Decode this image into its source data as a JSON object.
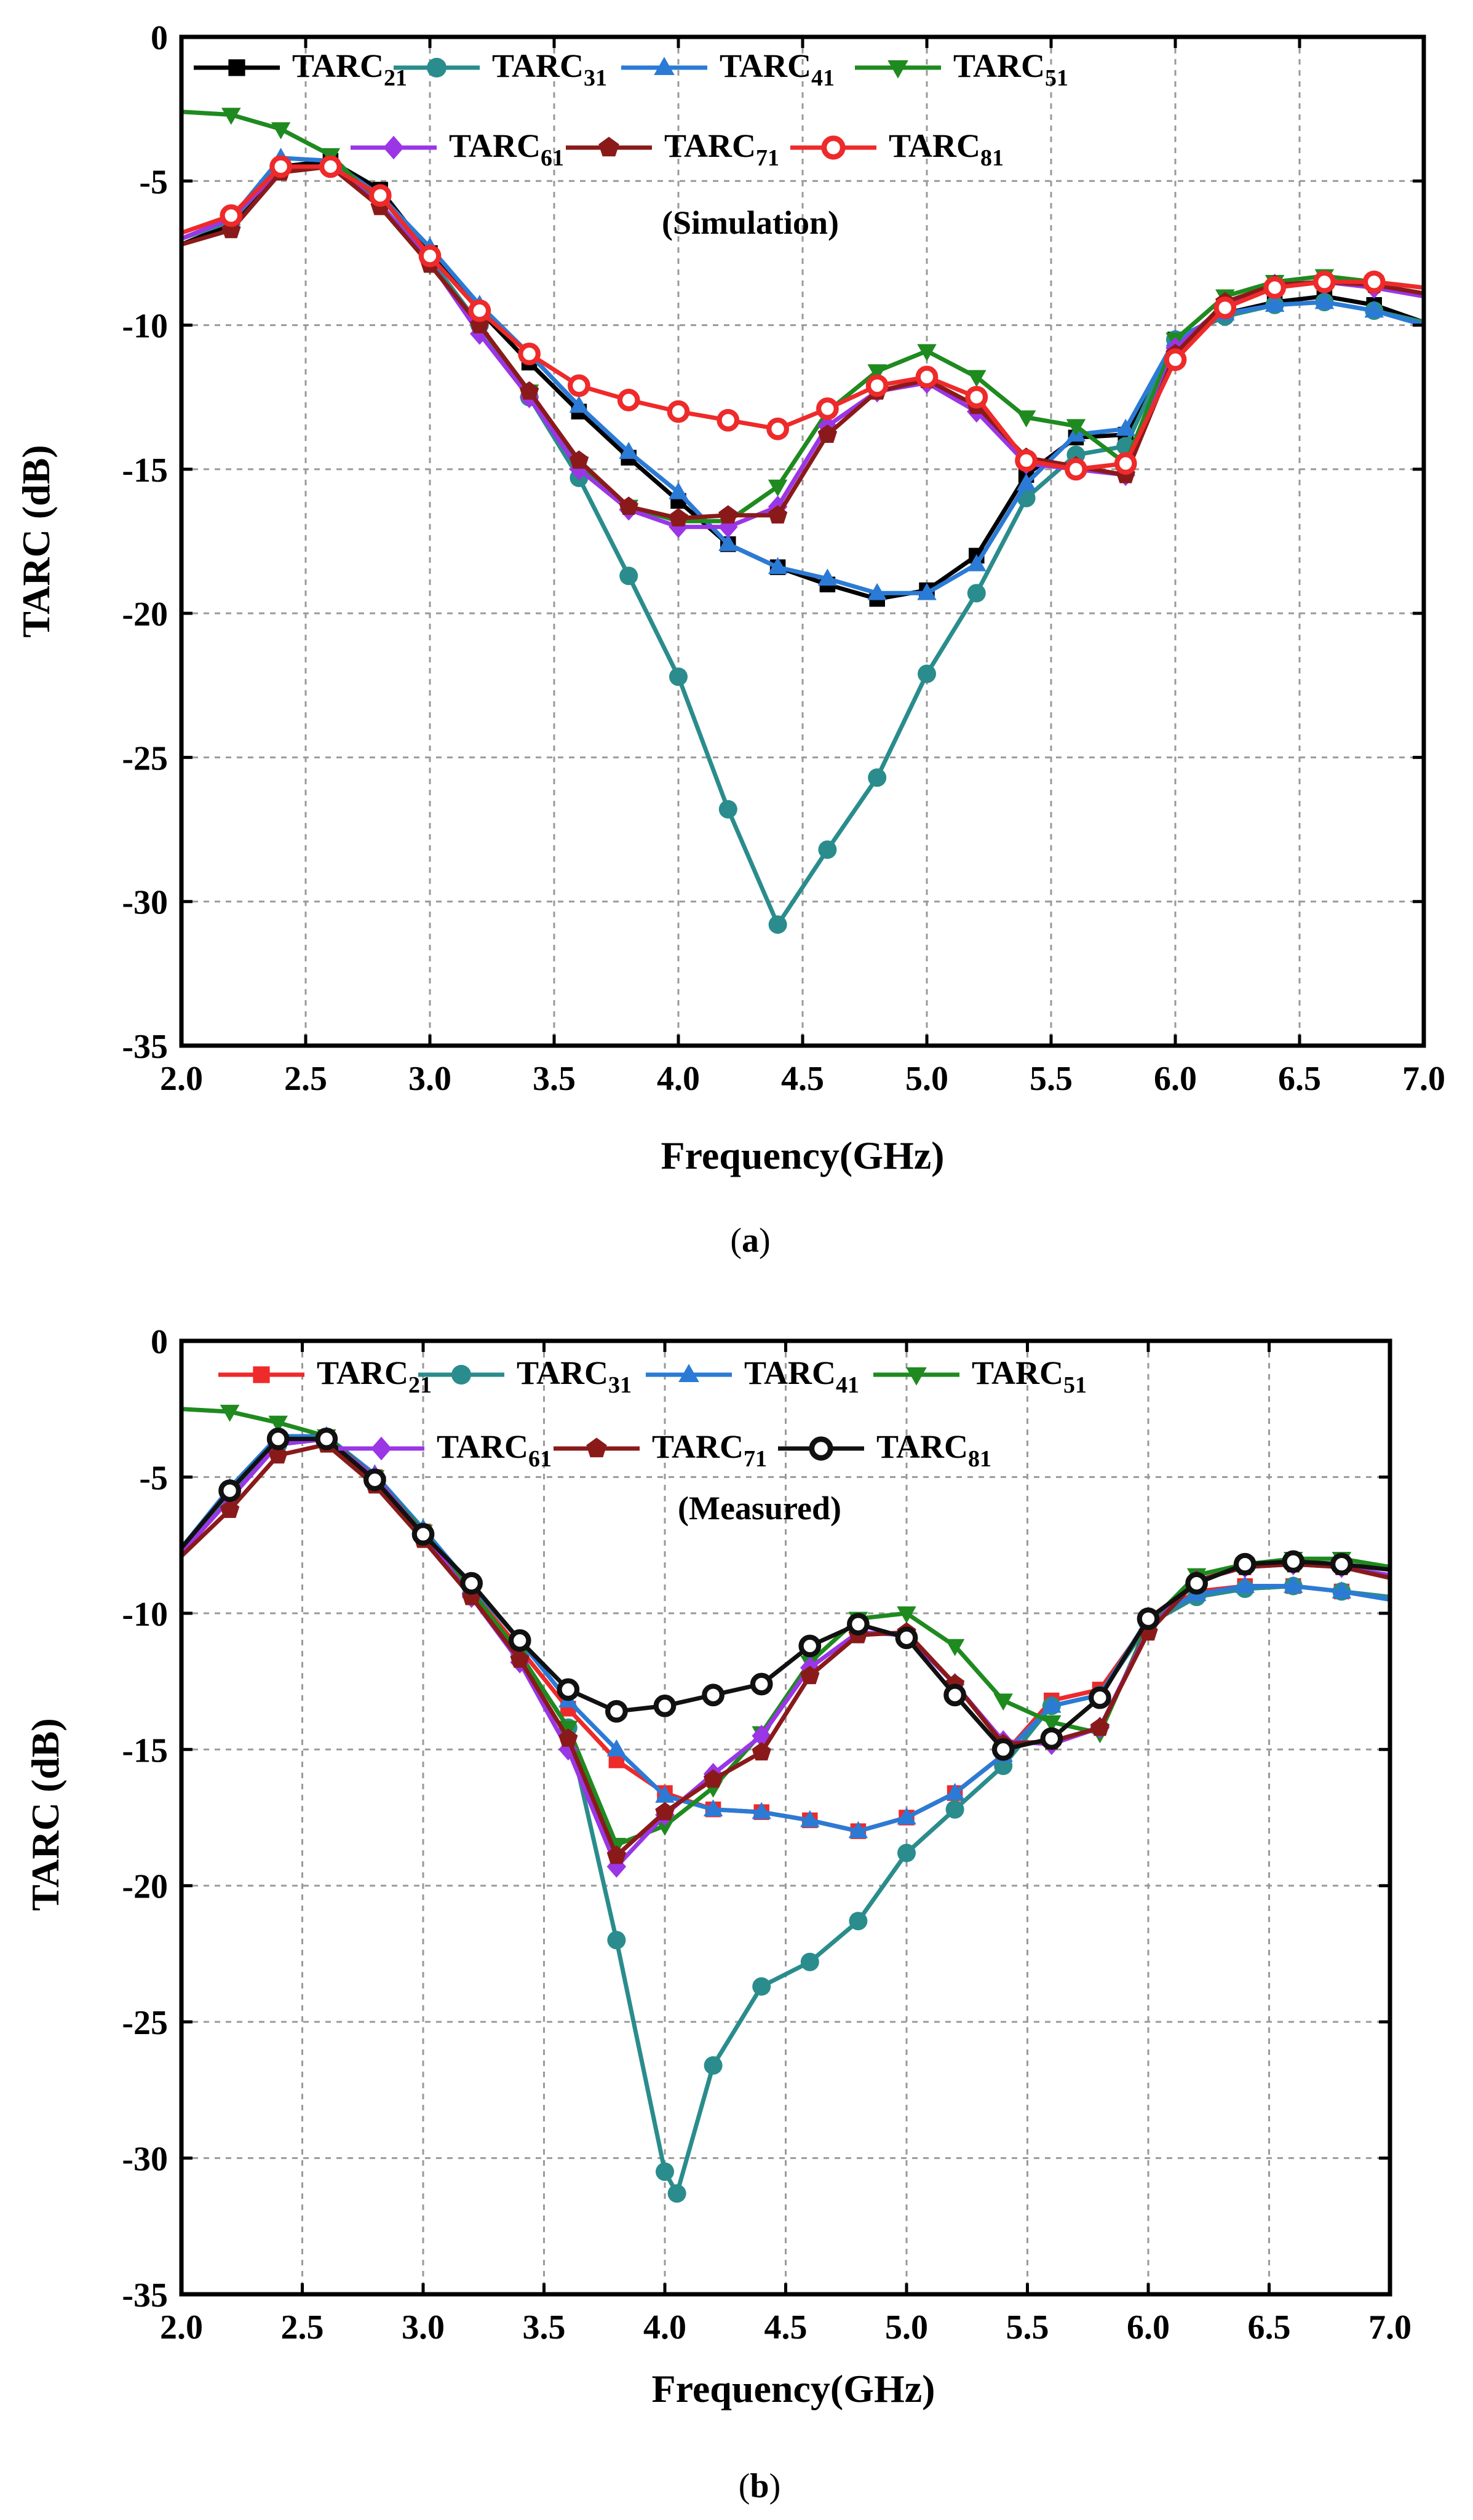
{
  "panels": [
    {
      "caption": "(a)",
      "caption_letter": "a"
    },
    {
      "caption": "(b)",
      "caption_letter": "b"
    }
  ],
  "chart_data": [
    {
      "type": "line",
      "title": "",
      "annotation": "(Simulation)",
      "xlabel": "Frequency(GHz)",
      "ylabel": "TARC (dB)",
      "xlim": [
        2.0,
        7.0
      ],
      "ylim": [
        -35,
        0
      ],
      "xticks": [
        "2.0",
        "2.5",
        "3.0",
        "3.5",
        "4.0",
        "4.5",
        "5.0",
        "5.5",
        "6.0",
        "6.5",
        "7.0"
      ],
      "yticks": [
        "0",
        "-5",
        "-10",
        "-15",
        "-20",
        "-25",
        "-30",
        "-35"
      ],
      "grid": true,
      "legend_position": "top",
      "series": [
        {
          "name": "TARC",
          "subscript": "21",
          "color": "#000000",
          "marker": "square",
          "x": [
            2.0,
            2.2,
            2.4,
            2.6,
            2.8,
            3.0,
            3.2,
            3.4,
            3.6,
            3.8,
            4.0,
            4.2,
            4.4,
            4.6,
            4.8,
            5.0,
            5.2,
            5.4,
            5.6,
            5.8,
            6.0,
            6.2,
            6.4,
            6.6,
            6.8,
            7.0
          ],
          "y": [
            -7.2,
            -6.5,
            -4.5,
            -4.3,
            -5.3,
            -7.5,
            -9.5,
            -11.3,
            -13.0,
            -14.6,
            -16.1,
            -17.6,
            -18.4,
            -19.0,
            -19.5,
            -19.2,
            -18.0,
            -15.2,
            -13.9,
            -13.8,
            -10.5,
            -9.6,
            -9.2,
            -9.0,
            -9.3,
            -9.9
          ]
        },
        {
          "name": "TARC",
          "subscript": "31",
          "color": "#2a8c8c",
          "marker": "circle",
          "x": [
            2.0,
            2.2,
            2.4,
            2.6,
            2.8,
            3.0,
            3.2,
            3.4,
            3.6,
            3.8,
            4.0,
            4.2,
            4.4,
            4.6,
            4.8,
            5.0,
            5.2,
            5.4,
            5.6,
            5.8,
            6.0,
            6.2,
            6.4,
            6.6,
            6.8,
            7.0
          ],
          "y": [
            -7.0,
            -6.4,
            -4.5,
            -4.5,
            -5.5,
            -7.7,
            -10.0,
            -12.5,
            -15.3,
            -18.7,
            -22.2,
            -26.8,
            -30.8,
            -28.2,
            -25.7,
            -22.1,
            -19.3,
            -16.0,
            -14.5,
            -14.2,
            -10.5,
            -9.7,
            -9.3,
            -9.2,
            -9.5,
            -9.9
          ]
        },
        {
          "name": "TARC",
          "subscript": "41",
          "color": "#2b7bd6",
          "marker": "triangle-up",
          "x": [
            2.0,
            2.2,
            2.4,
            2.6,
            2.8,
            3.0,
            3.2,
            3.4,
            3.6,
            3.8,
            4.0,
            4.2,
            4.4,
            4.6,
            4.8,
            5.0,
            5.2,
            5.4,
            5.6,
            5.8,
            6.0,
            6.2,
            6.4,
            6.6,
            6.8,
            7.0
          ],
          "y": [
            -7.0,
            -6.3,
            -4.2,
            -4.3,
            -5.5,
            -7.3,
            -9.3,
            -11.0,
            -12.8,
            -14.4,
            -15.8,
            -17.6,
            -18.4,
            -18.8,
            -19.3,
            -19.3,
            -18.3,
            -15.5,
            -13.8,
            -13.6,
            -10.5,
            -9.6,
            -9.3,
            -9.2,
            -9.5,
            -10.0
          ]
        },
        {
          "name": "TARC",
          "subscript": "51",
          "color": "#1f8a1f",
          "marker": "triangle-down",
          "x": [
            2.0,
            2.2,
            2.4,
            2.6,
            2.8,
            3.0,
            3.2,
            3.4,
            3.6,
            3.8,
            4.0,
            4.2,
            4.4,
            4.6,
            4.8,
            5.0,
            5.2,
            5.4,
            5.6,
            5.8,
            6.0,
            6.2,
            6.4,
            6.6,
            6.8,
            7.0
          ],
          "y": [
            -2.6,
            -2.7,
            -3.2,
            -4.1,
            -5.8,
            -7.9,
            -10.0,
            -12.3,
            -14.8,
            -16.3,
            -16.8,
            -16.8,
            -15.6,
            -13.0,
            -11.6,
            -10.9,
            -11.8,
            -13.2,
            -13.5,
            -14.8,
            -10.5,
            -9.0,
            -8.5,
            -8.3,
            -8.5,
            -8.7
          ]
        },
        {
          "name": "TARC",
          "subscript": "61",
          "color": "#9a36e6",
          "marker": "diamond",
          "x": [
            2.0,
            2.2,
            2.4,
            2.6,
            2.8,
            3.0,
            3.2,
            3.4,
            3.6,
            3.8,
            4.0,
            4.2,
            4.4,
            4.6,
            4.8,
            5.0,
            5.2,
            5.4,
            5.6,
            5.8,
            6.0,
            6.2,
            6.4,
            6.6,
            6.8,
            7.0
          ],
          "y": [
            -7.0,
            -6.3,
            -4.6,
            -4.5,
            -5.8,
            -7.8,
            -10.3,
            -12.5,
            -15.0,
            -16.4,
            -17.0,
            -17.0,
            -16.3,
            -13.5,
            -12.3,
            -12.0,
            -13.0,
            -14.8,
            -15.0,
            -15.2,
            -10.8,
            -9.3,
            -8.6,
            -8.5,
            -8.7,
            -9.0
          ]
        },
        {
          "name": "TARC",
          "subscript": "71",
          "color": "#8a1a1a",
          "marker": "pentagon",
          "x": [
            2.0,
            2.2,
            2.4,
            2.6,
            2.8,
            3.0,
            3.2,
            3.4,
            3.6,
            3.8,
            4.0,
            4.2,
            4.4,
            4.6,
            4.8,
            5.0,
            5.2,
            5.4,
            5.6,
            5.8,
            6.0,
            6.2,
            6.4,
            6.6,
            6.8,
            7.0
          ],
          "y": [
            -7.2,
            -6.7,
            -4.7,
            -4.5,
            -5.9,
            -7.9,
            -10.0,
            -12.3,
            -14.7,
            -16.3,
            -16.7,
            -16.6,
            -16.6,
            -13.8,
            -12.3,
            -11.9,
            -12.8,
            -14.6,
            -14.9,
            -15.2,
            -11.0,
            -9.2,
            -8.6,
            -8.5,
            -8.6,
            -8.9
          ]
        },
        {
          "name": "TARC",
          "subscript": "81",
          "color": "#ee2a2a",
          "marker": "circle-open",
          "x": [
            2.0,
            2.2,
            2.4,
            2.6,
            2.8,
            3.0,
            3.2,
            3.4,
            3.6,
            3.8,
            4.0,
            4.2,
            4.4,
            4.6,
            4.8,
            5.0,
            5.2,
            5.4,
            5.6,
            5.8,
            6.0,
            6.2,
            6.4,
            6.6,
            6.8,
            7.0
          ],
          "y": [
            -6.8,
            -6.2,
            -4.5,
            -4.5,
            -5.5,
            -7.6,
            -9.5,
            -11.0,
            -12.1,
            -12.6,
            -13.0,
            -13.3,
            -13.6,
            -12.9,
            -12.1,
            -11.8,
            -12.5,
            -14.7,
            -15.0,
            -14.8,
            -11.2,
            -9.4,
            -8.7,
            -8.5,
            -8.5,
            -8.7
          ]
        }
      ]
    },
    {
      "type": "line",
      "title": "",
      "annotation": "(Measured)",
      "xlabel": "Frequency(GHz)",
      "ylabel": "TARC (dB)",
      "xlim": [
        2.0,
        7.0
      ],
      "ylim": [
        -35,
        0
      ],
      "xticks": [
        "2.0",
        "2.5",
        "3.0",
        "3.5",
        "4.0",
        "4.5",
        "5.0",
        "5.5",
        "6.0",
        "6.5",
        "7.0"
      ],
      "yticks": [
        "0",
        "-5",
        "-10",
        "-15",
        "-20",
        "-25",
        "-30",
        "-35"
      ],
      "grid": true,
      "legend_position": "top",
      "series": [
        {
          "name": "TARC",
          "subscript": "21",
          "color": "#ee2a2a",
          "marker": "square",
          "x": [
            2.0,
            2.2,
            2.4,
            2.6,
            2.8,
            3.0,
            3.2,
            3.4,
            3.6,
            3.8,
            4.0,
            4.2,
            4.4,
            4.6,
            4.8,
            5.0,
            5.2,
            5.4,
            5.6,
            5.8,
            6.0,
            6.2,
            6.4,
            6.6,
            6.8,
            7.0
          ],
          "y": [
            -7.8,
            -5.6,
            -3.7,
            -3.6,
            -5.0,
            -7.0,
            -9.2,
            -11.3,
            -13.5,
            -15.4,
            -16.6,
            -17.2,
            -17.3,
            -17.6,
            -18.0,
            -17.5,
            -16.6,
            -15.2,
            -13.2,
            -12.8,
            -10.3,
            -9.2,
            -9.0,
            -9.0,
            -9.2,
            -9.4
          ]
        },
        {
          "name": "TARC",
          "subscript": "31",
          "color": "#2a8c8c",
          "marker": "circle",
          "x": [
            2.0,
            2.2,
            2.4,
            2.6,
            2.8,
            3.0,
            3.2,
            3.4,
            3.6,
            3.8,
            4.0,
            4.05,
            4.2,
            4.4,
            4.6,
            4.8,
            5.0,
            5.2,
            5.4,
            5.6,
            5.8,
            6.0,
            6.2,
            6.4,
            6.6,
            6.8,
            7.0
          ],
          "y": [
            -7.8,
            -5.7,
            -3.8,
            -3.6,
            -5.1,
            -7.1,
            -9.3,
            -11.5,
            -14.2,
            -22.0,
            -30.5,
            -31.3,
            -26.6,
            -23.7,
            -22.8,
            -21.3,
            -18.8,
            -17.2,
            -15.6,
            -13.4,
            -13.0,
            -10.4,
            -9.4,
            -9.1,
            -9.0,
            -9.2,
            -9.4
          ]
        },
        {
          "name": "TARC",
          "subscript": "41",
          "color": "#2b7bd6",
          "marker": "triangle-up",
          "x": [
            2.0,
            2.2,
            2.4,
            2.6,
            2.8,
            3.0,
            3.2,
            3.4,
            3.6,
            3.8,
            4.0,
            4.2,
            4.4,
            4.6,
            4.8,
            5.0,
            5.2,
            5.4,
            5.6,
            5.8,
            6.0,
            6.2,
            6.4,
            6.6,
            6.8,
            7.0
          ],
          "y": [
            -7.6,
            -5.4,
            -3.5,
            -3.5,
            -4.9,
            -6.9,
            -9.0,
            -11.0,
            -13.2,
            -15.0,
            -16.7,
            -17.2,
            -17.3,
            -17.6,
            -18.0,
            -17.5,
            -16.6,
            -15.2,
            -13.4,
            -13.0,
            -10.2,
            -9.3,
            -9.0,
            -9.0,
            -9.2,
            -9.5
          ]
        },
        {
          "name": "TARC",
          "subscript": "51",
          "color": "#1f8a1f",
          "marker": "triangle-down",
          "x": [
            2.0,
            2.2,
            2.4,
            2.6,
            2.8,
            3.0,
            3.2,
            3.4,
            3.6,
            3.8,
            4.0,
            4.2,
            4.4,
            4.6,
            4.8,
            5.0,
            5.2,
            5.4,
            5.6,
            5.8,
            6.0,
            6.2,
            6.4,
            6.6,
            6.8,
            7.0
          ],
          "y": [
            -2.5,
            -2.6,
            -3.0,
            -3.5,
            -5.0,
            -7.0,
            -9.2,
            -11.5,
            -14.2,
            -18.5,
            -17.8,
            -16.4,
            -14.4,
            -11.8,
            -10.2,
            -10.0,
            -11.2,
            -13.2,
            -14.0,
            -14.4,
            -10.4,
            -8.6,
            -8.2,
            -8.0,
            -8.0,
            -8.3
          ]
        },
        {
          "name": "TARC",
          "subscript": "61",
          "color": "#9a36e6",
          "marker": "diamond",
          "x": [
            2.0,
            2.2,
            2.4,
            2.6,
            2.8,
            3.0,
            3.2,
            3.4,
            3.6,
            3.8,
            4.0,
            4.2,
            4.4,
            4.6,
            4.8,
            5.0,
            5.2,
            5.4,
            5.6,
            5.8,
            6.0,
            6.2,
            6.4,
            6.6,
            6.8,
            7.0
          ],
          "y": [
            -7.8,
            -5.8,
            -3.8,
            -3.6,
            -5.0,
            -7.1,
            -9.4,
            -11.8,
            -15.0,
            -19.3,
            -17.4,
            -15.9,
            -14.5,
            -12.0,
            -10.7,
            -10.8,
            -12.6,
            -14.7,
            -14.8,
            -14.2,
            -10.6,
            -8.8,
            -8.3,
            -8.2,
            -8.3,
            -8.6
          ]
        },
        {
          "name": "TARC",
          "subscript": "71",
          "color": "#8a1a1a",
          "marker": "pentagon",
          "x": [
            2.0,
            2.2,
            2.4,
            2.6,
            2.8,
            3.0,
            3.2,
            3.4,
            3.6,
            3.8,
            4.0,
            4.2,
            4.4,
            4.6,
            4.8,
            5.0,
            5.2,
            5.4,
            5.6,
            5.8,
            6.0,
            6.2,
            6.4,
            6.6,
            6.8,
            7.0
          ],
          "y": [
            -7.9,
            -6.2,
            -4.2,
            -3.8,
            -5.3,
            -7.3,
            -9.4,
            -11.7,
            -14.6,
            -18.9,
            -17.3,
            -16.1,
            -15.1,
            -12.3,
            -10.8,
            -10.7,
            -12.6,
            -14.8,
            -14.7,
            -14.2,
            -10.7,
            -8.8,
            -8.3,
            -8.2,
            -8.3,
            -8.7
          ]
        },
        {
          "name": "TARC",
          "subscript": "81",
          "color": "#111111",
          "marker": "circle-open",
          "x": [
            2.0,
            2.2,
            2.4,
            2.6,
            2.8,
            3.0,
            3.2,
            3.4,
            3.6,
            3.8,
            4.0,
            4.2,
            4.4,
            4.6,
            4.8,
            5.0,
            5.2,
            5.4,
            5.6,
            5.8,
            6.0,
            6.2,
            6.4,
            6.6,
            6.8,
            7.0
          ],
          "y": [
            -7.6,
            -5.5,
            -3.6,
            -3.6,
            -5.1,
            -7.1,
            -8.9,
            -11.0,
            -12.8,
            -13.6,
            -13.4,
            -13.0,
            -12.6,
            -11.2,
            -10.4,
            -10.9,
            -13.0,
            -15.0,
            -14.6,
            -13.1,
            -10.2,
            -8.9,
            -8.2,
            -8.1,
            -8.2,
            -8.4
          ]
        }
      ]
    }
  ]
}
